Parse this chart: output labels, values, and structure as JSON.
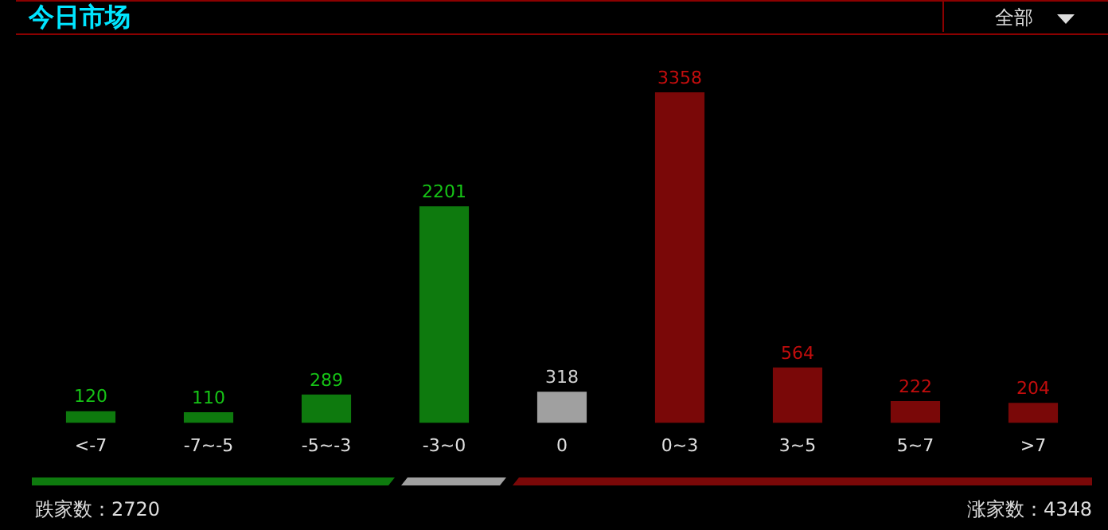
{
  "chart_data": {
    "type": "bar",
    "title": "今日市场",
    "categories": [
      "<-7",
      "-7~-5",
      "-5~-3",
      "-3~0",
      "0",
      "0~3",
      "3~5",
      "5~7",
      ">7"
    ],
    "values": [
      120,
      110,
      289,
      2201,
      318,
      3358,
      564,
      222,
      204
    ],
    "colors": [
      "#0e7a0e",
      "#0e7a0e",
      "#0e7a0e",
      "#0e7a0e",
      "#a0a0a0",
      "#7a0808",
      "#7a0808",
      "#7a0808",
      "#7a0808"
    ],
    "data_labels": true,
    "legend": false,
    "annotations": [
      "全部",
      "跌家数：2720",
      "涨家数：4348"
    ]
  }
}
